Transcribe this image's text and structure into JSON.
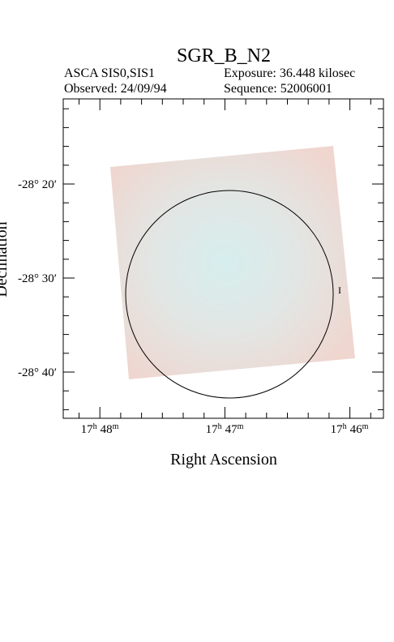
{
  "header": {
    "title": "SGR_B_N2",
    "instrument": "ASCA SIS0,SIS1",
    "exposure": "Exposure: 36.448 kilosec",
    "observed": "Observed: 24/09/94",
    "sequence": "Sequence: 52006001"
  },
  "plot": {
    "x_label": "Right Ascension",
    "y_label": "Declination",
    "x_ticks": [
      {
        "hours": "17",
        "h": "h",
        "minutes": "48",
        "m": "m"
      },
      {
        "hours": "17",
        "h": "h",
        "minutes": "47",
        "m": "m"
      },
      {
        "hours": "17",
        "h": "h",
        "minutes": "46",
        "m": "m"
      }
    ],
    "y_ticks": [
      "-28° 20′",
      "-28° 30′",
      "-28° 40′"
    ]
  }
}
